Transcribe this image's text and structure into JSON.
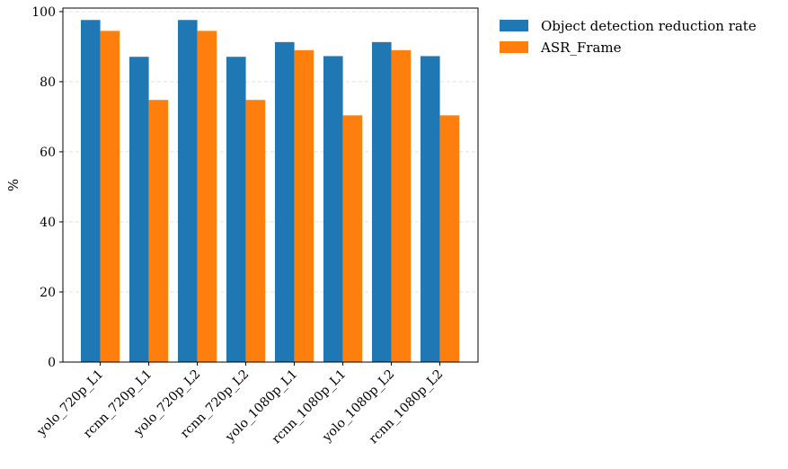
{
  "chart_data": {
    "type": "bar",
    "categories": [
      "yolo_720p_L1",
      "rcnn_720p_L1",
      "yolo_720p_L2",
      "rcnn_720p_L2",
      "yolo_1080p_L1",
      "rcnn_1080p_L1",
      "yolo_1080p_L2",
      "rcnn_1080p_L2"
    ],
    "series": [
      {
        "name": "Object detection reduction rate",
        "color": "#1f77b4",
        "values": [
          97.6,
          87.1,
          97.6,
          87.1,
          91.3,
          87.3,
          91.3,
          87.3
        ]
      },
      {
        "name": "ASR_Frame",
        "color": "#ff7f0e",
        "values": [
          94.5,
          74.8,
          94.5,
          74.8,
          89.0,
          70.4,
          89.0,
          70.4
        ]
      }
    ],
    "title": "",
    "xlabel": "",
    "ylabel": "%",
    "ylim": [
      0,
      101
    ],
    "yticks": [
      0,
      20,
      40,
      60,
      80,
      100
    ],
    "grid": "y",
    "legend": "outside-top-right"
  }
}
